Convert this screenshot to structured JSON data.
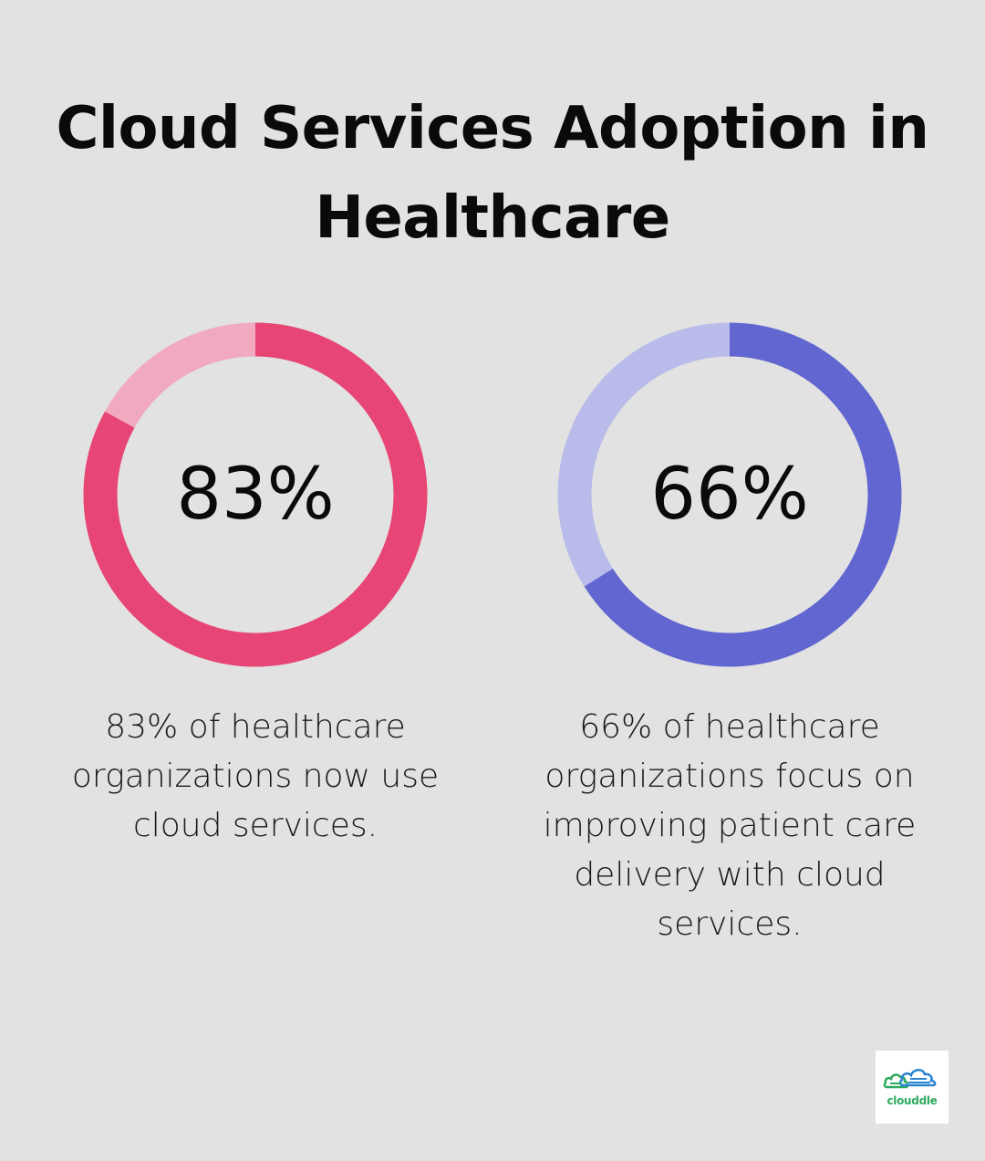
{
  "title": "Cloud Services Adoption in Healthcare",
  "chart_data": [
    {
      "type": "pie",
      "value": 83,
      "label": "83%",
      "description": "83% of healthcare organizations now use cloud services.",
      "colors": {
        "fill": "#e64575",
        "track": "#f1a9bf"
      }
    },
    {
      "type": "pie",
      "value": 66,
      "label": "66%",
      "description": "66% of healthcare organizations focus on improving patient care delivery with cloud services.",
      "colors": {
        "fill": "#6166d0",
        "track": "#b9bbea"
      }
    }
  ],
  "logo": {
    "text": "clouddle",
    "icon": "cloud-logo-icon",
    "colors": {
      "green": "#2eaa5f",
      "blue": "#2a84d2"
    }
  }
}
